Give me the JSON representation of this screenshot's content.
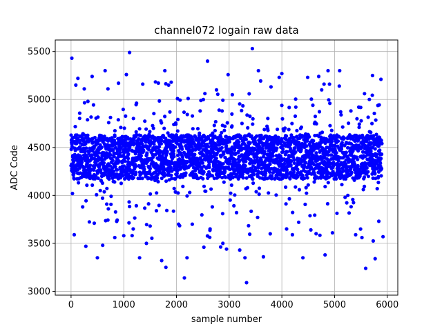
{
  "chart_data": {
    "type": "scatter",
    "title": "channel072 logain raw data",
    "xlabel": "sample number",
    "ylabel": "ADC Code",
    "xlim": [
      -300,
      6200
    ],
    "ylim": [
      2960,
      5620
    ],
    "x_ticks": [
      0,
      1000,
      2000,
      3000,
      4000,
      5000,
      6000
    ],
    "y_ticks": [
      3000,
      3500,
      4000,
      4500,
      5000,
      5500
    ],
    "grid": true,
    "marker_color": "#0000ff",
    "n_samples": 5900,
    "band": {
      "center": 4400,
      "spread": 230,
      "lower_edge": 4180,
      "upper_edge": 4640
    },
    "outliers": [
      [
        14,
        5430
      ],
      [
        60,
        3590
      ],
      [
        90,
        5150
      ],
      [
        130,
        5220
      ],
      [
        220,
        3880
      ],
      [
        250,
        5110
      ],
      [
        280,
        3470
      ],
      [
        320,
        4980
      ],
      [
        400,
        5240
      ],
      [
        440,
        3710
      ],
      [
        500,
        3350
      ],
      [
        600,
        3480
      ],
      [
        700,
        5110
      ],
      [
        760,
        3990
      ],
      [
        830,
        3560
      ],
      [
        900,
        5170
      ],
      [
        1000,
        3580
      ],
      [
        1050,
        5260
      ],
      [
        1110,
        5490
      ],
      [
        1180,
        3650
      ],
      [
        1300,
        3350
      ],
      [
        1360,
        5160
      ],
      [
        1430,
        3500
      ],
      [
        1500,
        3680
      ],
      [
        1620,
        3840
      ],
      [
        1720,
        3320
      ],
      [
        1800,
        3250
      ],
      [
        1850,
        5150
      ],
      [
        1900,
        5180
      ],
      [
        2040,
        3700
      ],
      [
        2150,
        3140
      ],
      [
        2200,
        3350
      ],
      [
        2300,
        3700
      ],
      [
        2450,
        4880
      ],
      [
        2520,
        3460
      ],
      [
        2590,
        5400
      ],
      [
        2680,
        3880
      ],
      [
        2760,
        5100
      ],
      [
        2880,
        3500
      ],
      [
        2950,
        3440
      ],
      [
        3060,
        5050
      ],
      [
        3200,
        3430
      ],
      [
        3300,
        3350
      ],
      [
        3330,
        3090
      ],
      [
        3440,
        5530
      ],
      [
        3540,
        3770
      ],
      [
        3650,
        3360
      ],
      [
        3780,
        3600
      ],
      [
        3950,
        5230
      ],
      [
        4000,
        5270
      ],
      [
        4090,
        3650
      ],
      [
        4200,
        3590
      ],
      [
        4320,
        3720
      ],
      [
        4400,
        3350
      ],
      [
        4550,
        3640
      ],
      [
        4700,
        5240
      ],
      [
        4800,
        5160
      ],
      [
        4820,
        3380
      ],
      [
        4910,
        4960
      ],
      [
        4960,
        3610
      ],
      [
        5090,
        5140
      ],
      [
        5200,
        3980
      ],
      [
        5310,
        4880
      ],
      [
        5400,
        3590
      ],
      [
        5520,
        3560
      ],
      [
        5590,
        3240
      ],
      [
        5660,
        5000
      ],
      [
        5720,
        5250
      ],
      [
        5770,
        3340
      ],
      [
        5840,
        3730
      ],
      [
        5880,
        5210
      ],
      [
        5920,
        3570
      ]
    ]
  }
}
